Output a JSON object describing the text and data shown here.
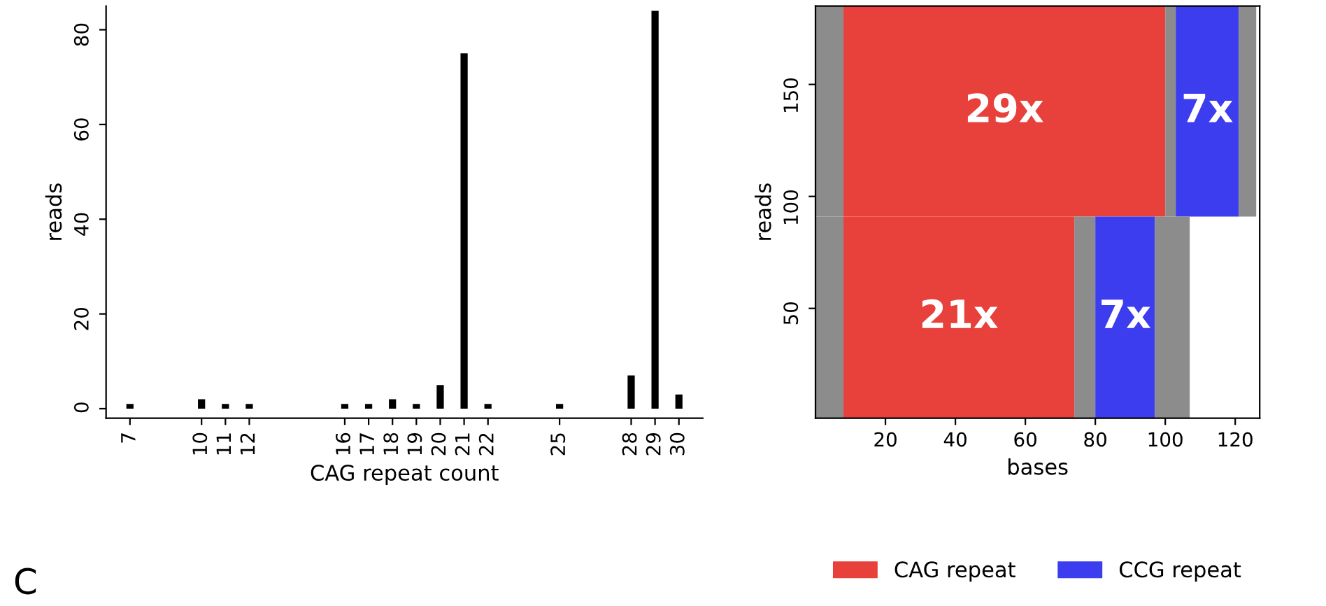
{
  "chart_data": [
    {
      "type": "bar",
      "xlabel": "CAG repeat count",
      "ylabel": "reads",
      "x": [
        7,
        10,
        11,
        12,
        16,
        17,
        18,
        19,
        20,
        21,
        22,
        25,
        28,
        29,
        30
      ],
      "values": [
        1,
        2,
        1,
        1,
        1,
        1,
        2,
        1,
        5,
        75,
        1,
        1,
        7,
        84,
        3
      ],
      "color": "#000000",
      "xlim": [
        6,
        31
      ],
      "xticks": [
        7,
        10,
        11,
        12,
        16,
        17,
        18,
        19,
        20,
        21,
        22,
        25,
        28,
        29,
        30
      ],
      "ylim": [
        -2,
        85
      ],
      "yticks": [
        0,
        20,
        40,
        60,
        80
      ],
      "grid": false,
      "annotations": [
        "C"
      ]
    },
    {
      "type": "bar",
      "orientation": "horizontal",
      "stacked": true,
      "xlabel": "bases",
      "ylabel": "reads",
      "x": [
        45,
        137
      ],
      "series": [
        {
          "color": "#8c8c8c",
          "values": [
            8,
            8
          ]
        },
        {
          "name": "CAG repeat",
          "color": "#e8403a",
          "values": [
            66,
            92
          ]
        },
        {
          "color": "#8c8c8c",
          "values": [
            6,
            3
          ]
        },
        {
          "name": "CCG repeat",
          "color": "#3d3df0",
          "values": [
            17,
            18
          ]
        },
        {
          "color": "#8c8c8c",
          "values": [
            10,
            5
          ]
        }
      ],
      "xlim": [
        0,
        127
      ],
      "xticks": [
        20,
        40,
        60,
        80,
        100,
        120
      ],
      "ylim": [
        1,
        185
      ],
      "yticks": [
        50,
        100,
        150
      ],
      "grid": false,
      "legend": "bottom",
      "annotations": [
        "29x",
        "7x",
        "21x",
        "7x"
      ]
    }
  ]
}
